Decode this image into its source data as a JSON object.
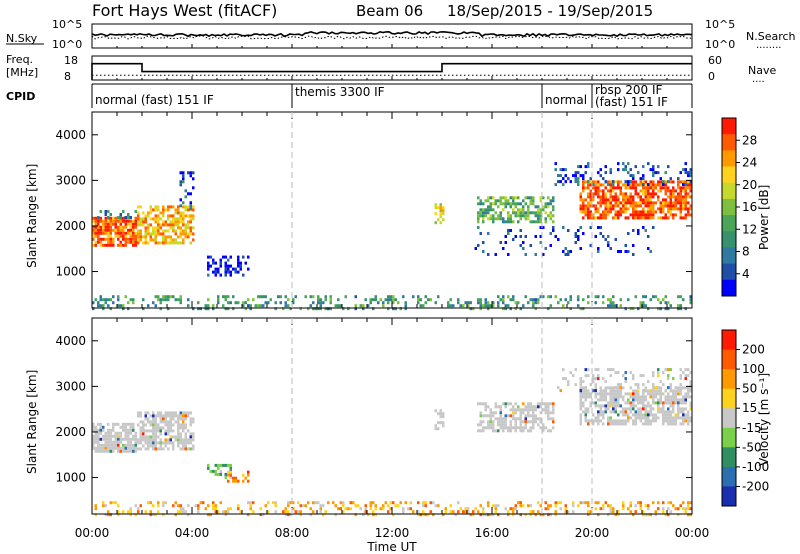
{
  "header": {
    "station": "Fort Hays West (fitACF)",
    "beam": "Beam 06",
    "date_range": "18/Sep/2015 - 19/Sep/2015"
  },
  "nsky_panel": {
    "left_label": "N.Sky",
    "left_ticks": [
      "10^5",
      "10^0"
    ],
    "right_ticks": [
      "10^5",
      "10^0"
    ],
    "right_label": "N.Search",
    "right_legend": "........"
  },
  "freq_panel": {
    "left_label_1": "Freq.",
    "left_label_2": "[MHz]",
    "left_ticks": [
      "18",
      "8"
    ],
    "right_ticks": [
      "60",
      "0"
    ],
    "right_label": "Nave",
    "right_legend": "....",
    "freq_steps": [
      {
        "start": 0.0,
        "end": 2.0,
        "value": 14.8
      },
      {
        "start": 2.0,
        "end": 14.0,
        "value": 11.5
      },
      {
        "start": 14.0,
        "end": 24.0,
        "value": 14.8
      }
    ],
    "nave_level": 12
  },
  "cpid": {
    "label": "CPID",
    "segments": [
      {
        "start": 0.0,
        "label": "normal (fast) 151 IF"
      },
      {
        "start": 8.0,
        "label": "themis 3300 IF"
      },
      {
        "start": 18.0,
        "label": "normal"
      },
      {
        "start": 20.0,
        "label": "rbsp 200 IF"
      },
      {
        "start": 20.0,
        "label": "(fast) 151 IF"
      }
    ]
  },
  "chart_data": [
    {
      "type": "heatmap",
      "title": "Power",
      "ylabel": "Slant Range [km]",
      "xlabel": "Time UT",
      "xlim": [
        0,
        24
      ],
      "ylim": [
        200,
        4500
      ],
      "x_tick_labels": [
        "00:00",
        "04:00",
        "08:00",
        "12:00",
        "16:00",
        "20:00",
        "00:00"
      ],
      "y_tick_labels": [
        "1000",
        "2000",
        "3000",
        "4000"
      ],
      "colorbar": {
        "label": "Power [dB]",
        "ticks": [
          "4",
          "8",
          "12",
          "16",
          "20",
          "24",
          "28"
        ],
        "colors": [
          "#0000ff",
          "#1f4fa8",
          "#2e7aa0",
          "#37916f",
          "#4aa55b",
          "#7dbf3f",
          "#c6d92b",
          "#ffd21e",
          "#ff9900",
          "#ff5a00",
          "#ff1a00"
        ]
      },
      "regions": [
        {
          "t0": 0.0,
          "t1": 1.8,
          "r0": 1600,
          "r1": 2200,
          "level": 0.85,
          "density": 0.82
        },
        {
          "t0": 1.8,
          "t1": 4.1,
          "r0": 1650,
          "r1": 2450,
          "level": 0.72,
          "density": 0.68
        },
        {
          "t0": 0.2,
          "t1": 1.8,
          "r0": 2200,
          "r1": 2350,
          "level": 0.25,
          "density": 0.4
        },
        {
          "t0": 4.6,
          "t1": 6.2,
          "r0": 900,
          "r1": 1350,
          "level": 0.05,
          "density": 0.35
        },
        {
          "t0": 3.5,
          "t1": 4.1,
          "r0": 2400,
          "r1": 3200,
          "level": 0.15,
          "density": 0.3
        },
        {
          "t0": 13.7,
          "t1": 14.1,
          "r0": 2100,
          "r1": 2500,
          "level": 0.6,
          "density": 0.5
        },
        {
          "t0": 15.4,
          "t1": 18.5,
          "r0": 2100,
          "r1": 2650,
          "level": 0.42,
          "density": 0.55
        },
        {
          "t0": 15.2,
          "t1": 22.5,
          "r0": 1400,
          "r1": 2000,
          "level": 0.12,
          "density": 0.12
        },
        {
          "t0": 19.5,
          "t1": 24.0,
          "r0": 2200,
          "r1": 3000,
          "level": 0.88,
          "density": 0.7
        },
        {
          "t0": 18.5,
          "t1": 24.0,
          "r0": 2900,
          "r1": 3400,
          "level": 0.15,
          "density": 0.25
        },
        {
          "t0": 0.0,
          "t1": 24.0,
          "r0": 200,
          "r1": 480,
          "level": 0.35,
          "density": 0.3
        }
      ]
    },
    {
      "type": "heatmap",
      "title": "Velocity",
      "ylabel": "Slant Range [km]",
      "xlabel": "Time UT",
      "xlim": [
        0,
        24
      ],
      "ylim": [
        200,
        4500
      ],
      "x_tick_labels": [
        "00:00",
        "04:00",
        "08:00",
        "12:00",
        "16:00",
        "20:00",
        "00:00"
      ],
      "y_tick_labels": [
        "1000",
        "2000",
        "3000",
        "4000"
      ],
      "colorbar": {
        "label": "Velocity [m s⁻¹]",
        "ticks": [
          "200",
          "100",
          "50",
          "15",
          "-15",
          "-50",
          "-100",
          "-200"
        ],
        "colors": [
          "#1a2fb0",
          "#2c6fb0",
          "#2f8f62",
          "#7ad04a",
          "#c8c8c8",
          "#ffd21e",
          "#ff9900",
          "#ff5a00",
          "#ff1a00"
        ]
      },
      "regions": [
        {
          "t0": 0.0,
          "t1": 1.8,
          "r0": 1600,
          "r1": 2200,
          "level": 0.5,
          "density": 0.8
        },
        {
          "t0": 1.8,
          "t1": 4.1,
          "r0": 1650,
          "r1": 2450,
          "level": 0.5,
          "density": 0.7
        },
        {
          "t0": 4.6,
          "t1": 5.6,
          "r0": 1000,
          "r1": 1300,
          "level": 0.3,
          "density": 0.45
        },
        {
          "t0": 5.4,
          "t1": 6.2,
          "r0": 900,
          "r1": 1150,
          "level": 0.72,
          "density": 0.45
        },
        {
          "t0": 13.7,
          "t1": 14.1,
          "r0": 2100,
          "r1": 2500,
          "level": 0.5,
          "density": 0.5
        },
        {
          "t0": 15.4,
          "t1": 18.5,
          "r0": 2050,
          "r1": 2650,
          "level": 0.5,
          "density": 0.55
        },
        {
          "t0": 19.5,
          "t1": 24.0,
          "r0": 2200,
          "r1": 3000,
          "level": 0.5,
          "density": 0.7
        },
        {
          "t0": 18.5,
          "t1": 24.0,
          "r0": 2900,
          "r1": 3400,
          "level": 0.5,
          "density": 0.25
        },
        {
          "t0": 0.0,
          "t1": 24.0,
          "r0": 200,
          "r1": 480,
          "level": 0.65,
          "density": 0.3
        }
      ]
    }
  ]
}
